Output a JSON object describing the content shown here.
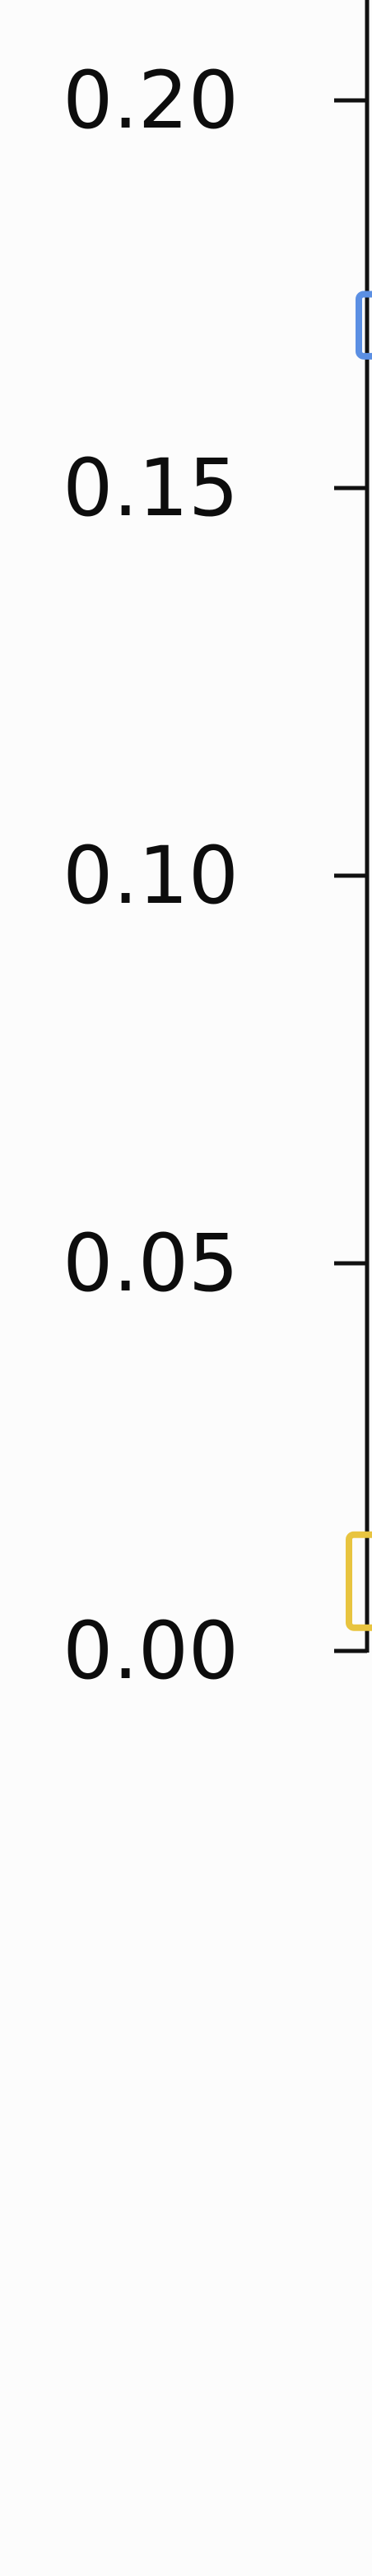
{
  "chart_data": {
    "type": "bar",
    "title": "",
    "xlabel": "",
    "ylabel": "",
    "ylim": [
      0.0,
      0.22
    ],
    "yticks": [
      {
        "value": 0.2,
        "label": "0.20"
      },
      {
        "value": 0.15,
        "label": "0.15"
      },
      {
        "value": 0.1,
        "label": "0.10"
      },
      {
        "value": 0.05,
        "label": "0.05"
      },
      {
        "value": 0.0,
        "label": "0.00"
      }
    ],
    "bars": [
      {
        "value": 0.175,
        "low": 0.167,
        "color": "#5b8fe3"
      },
      {
        "value": 0.015,
        "low": 0.003,
        "color": "#e8c43f"
      }
    ],
    "axis_color": "#111111",
    "grid": false,
    "legend": "none"
  }
}
